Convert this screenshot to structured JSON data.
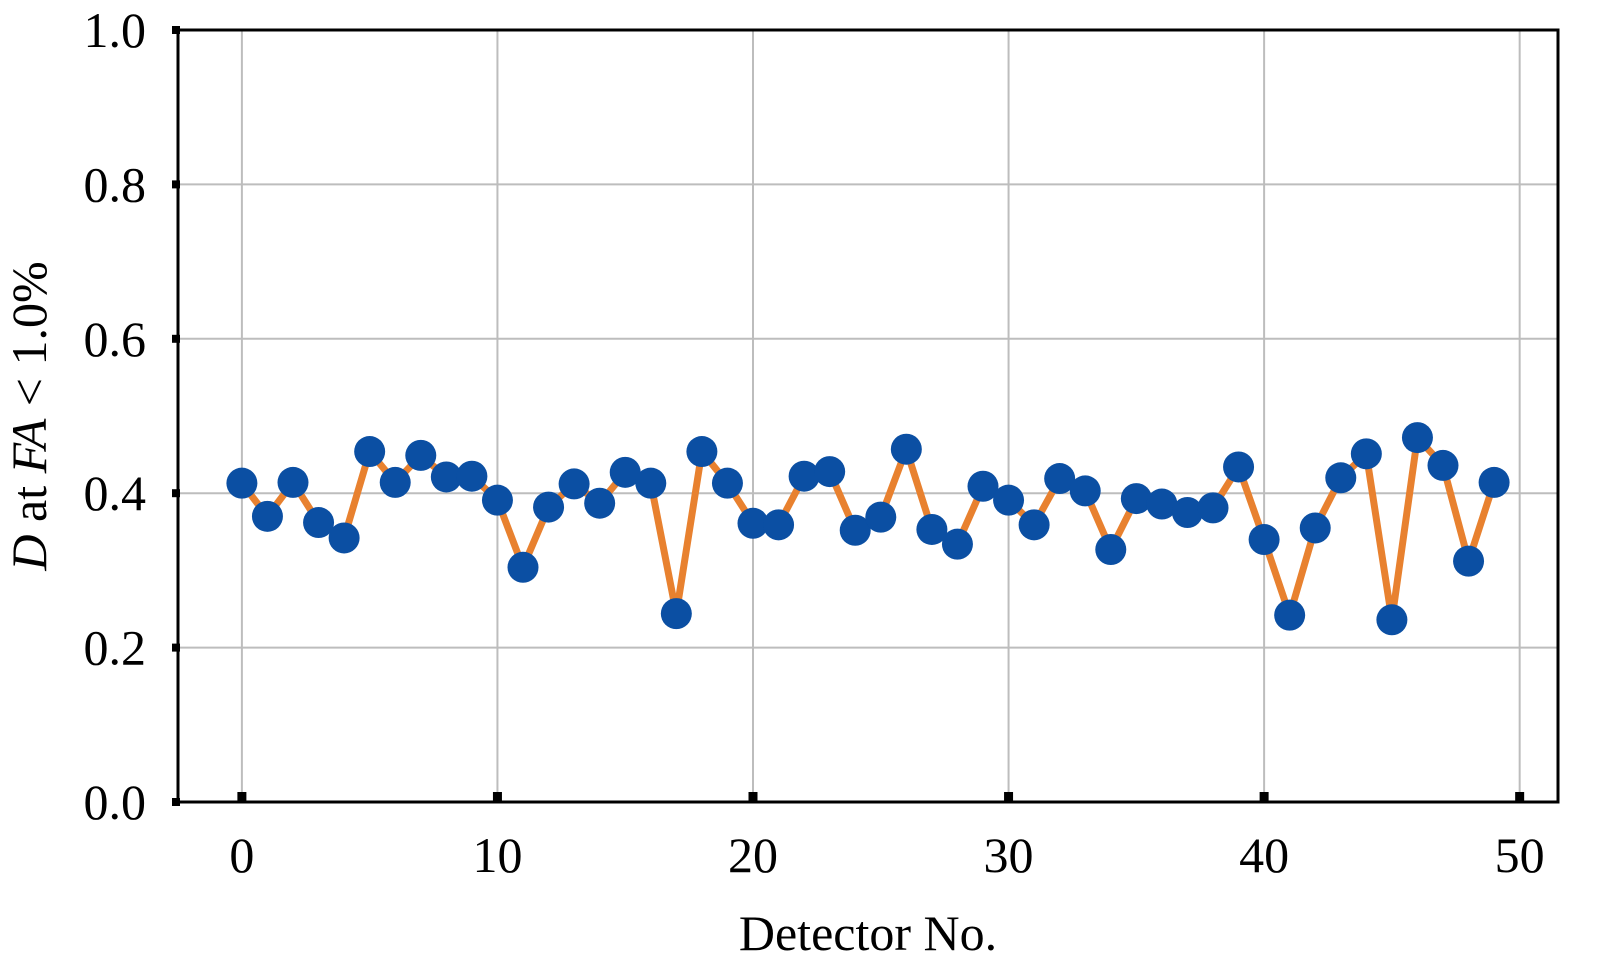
{
  "chart_data": {
    "type": "line",
    "xlabel": "Detector No.",
    "ylabel": {
      "parts": [
        {
          "text": "D",
          "italic": true
        },
        {
          "text": " at ",
          "italic": false
        },
        {
          "text": "FA",
          "italic": true
        },
        {
          "text": " < 1.0%",
          "italic": false
        }
      ]
    },
    "xlim": [
      -2.5,
      51.5
    ],
    "ylim": [
      0.0,
      1.0
    ],
    "x_ticks": [
      0,
      10,
      20,
      30,
      40,
      50
    ],
    "y_ticks": [
      0.0,
      0.2,
      0.4,
      0.6,
      0.8,
      1.0
    ],
    "x_tick_labels": [
      "0",
      "10",
      "20",
      "30",
      "40",
      "50"
    ],
    "y_tick_labels": [
      "0.0",
      "0.2",
      "0.4",
      "0.6",
      "0.8",
      "1.0"
    ],
    "grid": true,
    "line_color": "#e8812f",
    "marker_color": "#0b4fa3",
    "series": [
      {
        "x": [
          0,
          1,
          2,
          3,
          4,
          5,
          6,
          7,
          8,
          9,
          10,
          11,
          12,
          13,
          14,
          15,
          16,
          17,
          18,
          19,
          20,
          21,
          22,
          23,
          24,
          25,
          26,
          27,
          28,
          29,
          30,
          31,
          32,
          33,
          34,
          35,
          36,
          37,
          38,
          39,
          40,
          41,
          42,
          43,
          44,
          45,
          46,
          47,
          48,
          49
        ],
        "values": [
          0.413,
          0.37,
          0.414,
          0.362,
          0.342,
          0.454,
          0.414,
          0.449,
          0.421,
          0.422,
          0.391,
          0.304,
          0.382,
          0.412,
          0.387,
          0.427,
          0.413,
          0.244,
          0.454,
          0.413,
          0.361,
          0.359,
          0.422,
          0.428,
          0.352,
          0.369,
          0.457,
          0.353,
          0.334,
          0.409,
          0.391,
          0.359,
          0.419,
          0.403,
          0.327,
          0.393,
          0.386,
          0.375,
          0.381,
          0.434,
          0.34,
          0.242,
          0.355,
          0.42,
          0.451,
          0.236,
          0.472,
          0.436,
          0.312,
          0.414
        ]
      }
    ]
  }
}
